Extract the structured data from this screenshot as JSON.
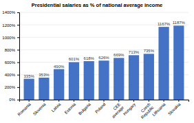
{
  "chart_data": {
    "type": "bar",
    "title": "Presidential salaries as % of national average income",
    "categories": [
      "Romania",
      "Slovenia",
      "Latvia",
      "Estonia",
      "Bulgaria",
      "Poland",
      "CEE\naverage",
      "Hungary",
      "Czech\nRepublic",
      "Lithuania",
      "Slovakia"
    ],
    "values": [
      335,
      353,
      490,
      601,
      618,
      626,
      669,
      713,
      735,
      1167,
      1187
    ],
    "value_labels": [
      "335%",
      "353%",
      "490%",
      "601%",
      "618%",
      "626%",
      "669%",
      "713%",
      "735%",
      "1167%",
      "1187%"
    ],
    "color": "#4472C4",
    "ylim": [
      0,
      1400
    ],
    "yticks": [
      {
        "value": 0,
        "label": "0%"
      },
      {
        "value": 200,
        "label": "200%"
      },
      {
        "value": 400,
        "label": "400%"
      },
      {
        "value": 600,
        "label": "600%"
      },
      {
        "value": 800,
        "label": "800%"
      },
      {
        "value": 1000,
        "label": "1000%"
      },
      {
        "value": 1200,
        "label": "1200%"
      },
      {
        "value": 1400,
        "label": "1400%"
      }
    ],
    "grid": true,
    "data_labels": true
  }
}
